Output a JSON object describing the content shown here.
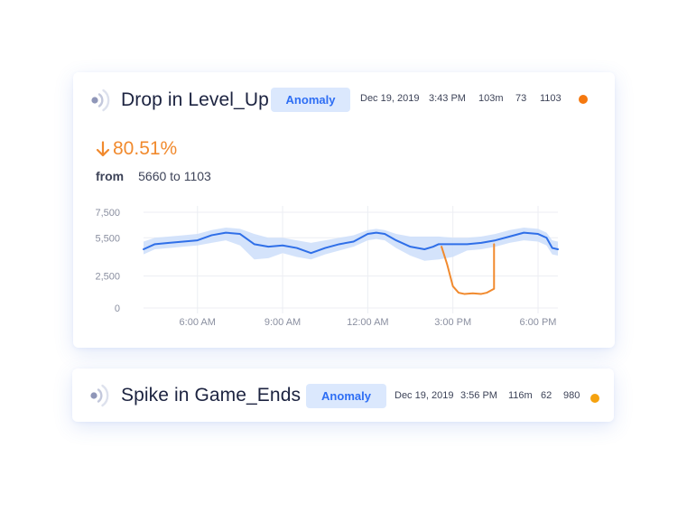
{
  "cards": [
    {
      "title": "Drop in Level_Up",
      "badge": "Anomaly",
      "meta": {
        "date": "Dec 19, 2019",
        "time": "3:43 PM",
        "duration": "103m",
        "count": "73",
        "value": "1103"
      },
      "dot_color": "#f5780f",
      "change": {
        "direction": "down",
        "percent": "80.51%",
        "from_label": "from",
        "from_text": "5660 to 1103"
      }
    },
    {
      "title": "Spike in Game_Ends",
      "badge": "Anomaly",
      "meta": {
        "date": "Dec 19, 2019",
        "time": "3:56 PM",
        "duration": "116m",
        "count": "62",
        "value": "980"
      },
      "dot_color": "#f5a20f"
    }
  ],
  "icons": {
    "signal": "signal-broadcast-icon",
    "arrow": "arrow-down-icon"
  },
  "colors": {
    "normal_line": "#2f6fe8",
    "band": "#cfe0fb",
    "anomaly_line": "#f18a2e",
    "accent_text": "#f18a2e"
  },
  "chart_data": {
    "type": "line",
    "title": "",
    "xlabel": "",
    "ylabel": "",
    "ylim": [
      0,
      7500
    ],
    "yticks": [
      "7,500",
      "5,500",
      "2,500",
      "0"
    ],
    "ytick_values": [
      7500,
      5500,
      2500,
      0
    ],
    "xticks": [
      "6:00 AM",
      "9:00 AM",
      "12:00 AM",
      "3:00 PM",
      "6:00 PM"
    ],
    "xtick_values": [
      6,
      9,
      12,
      15,
      18
    ],
    "xlim": [
      4.1,
      18.7
    ],
    "grid": true,
    "series": [
      {
        "role": "normal",
        "x": [
          4.1,
          4.5,
          5.0,
          5.5,
          6.0,
          6.5,
          7.0,
          7.5,
          8.0,
          8.5,
          9.0,
          9.5,
          10.0,
          10.5,
          11.0,
          11.5,
          12.0,
          12.3,
          12.6,
          13.0,
          13.5,
          14.0,
          14.3,
          14.5,
          15.5,
          16.0,
          16.5,
          17.0,
          17.5,
          18.0,
          18.3,
          18.5,
          18.7
        ],
        "y": [
          4600,
          5000,
          5100,
          5200,
          5300,
          5700,
          5900,
          5800,
          5000,
          4800,
          4900,
          4700,
          4300,
          4700,
          5000,
          5200,
          5800,
          5900,
          5800,
          5300,
          4800,
          4600,
          4800,
          5000,
          5000,
          5100,
          5300,
          5600,
          5900,
          5800,
          5500,
          4700,
          4600
        ]
      },
      {
        "role": "expected_band",
        "x": [
          4.1,
          4.5,
          5.0,
          5.5,
          6.0,
          6.5,
          7.0,
          7.5,
          8.0,
          8.5,
          9.0,
          9.5,
          10.0,
          10.5,
          11.0,
          11.5,
          12.0,
          12.3,
          12.6,
          13.0,
          13.5,
          14.0,
          14.5,
          15.0,
          15.5,
          16.0,
          16.5,
          17.0,
          17.5,
          18.0,
          18.3,
          18.5,
          18.7
        ],
        "y_low": [
          4200,
          4600,
          4700,
          4800,
          4900,
          5100,
          5300,
          4900,
          3800,
          3900,
          4300,
          4000,
          3800,
          4200,
          4500,
          4800,
          5300,
          5400,
          5300,
          4700,
          4100,
          3700,
          3800,
          4000,
          4500,
          4600,
          4800,
          5100,
          5300,
          5200,
          4900,
          4200,
          4100
        ],
        "y_high": [
          5200,
          5500,
          5600,
          5700,
          5800,
          6100,
          6300,
          6200,
          5800,
          5500,
          5500,
          5300,
          5100,
          5300,
          5500,
          5700,
          6100,
          6200,
          6100,
          5800,
          5600,
          5600,
          5600,
          5500,
          5500,
          5600,
          5800,
          6100,
          6300,
          6200,
          5900,
          5300,
          5200
        ]
      },
      {
        "role": "anomaly",
        "x": [
          14.6,
          14.8,
          15.0,
          15.2,
          15.4,
          15.7,
          16.0,
          16.2,
          16.45,
          16.45
        ],
        "y": [
          4800,
          3400,
          1700,
          1200,
          1100,
          1150,
          1100,
          1200,
          1500,
          5000
        ]
      }
    ]
  }
}
